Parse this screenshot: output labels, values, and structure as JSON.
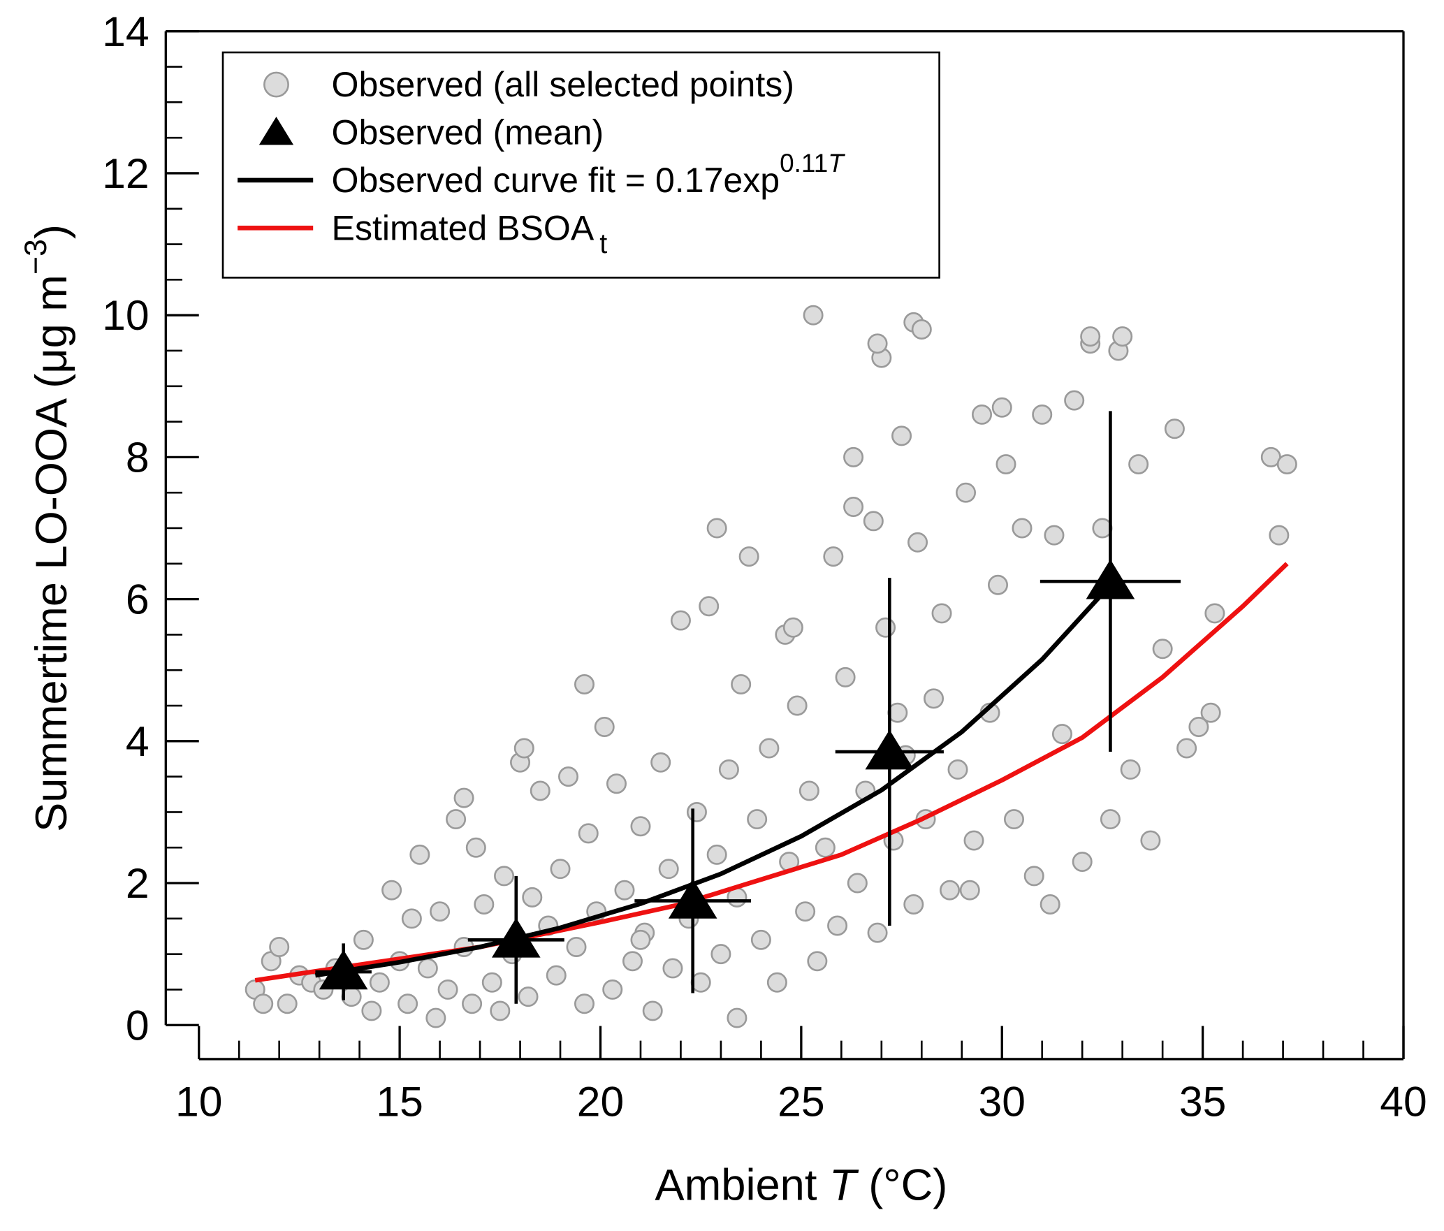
{
  "chart_data": {
    "type": "scatter",
    "xlabel": [
      "Ambient ",
      "T",
      " (°C)"
    ],
    "ylabel": [
      "Summertime LO-OOA (μg m",
      "−3",
      ")"
    ],
    "xlim": [
      10,
      40
    ],
    "xticks": [
      10,
      15,
      20,
      25,
      30,
      35,
      40
    ],
    "xminorticks": [
      11,
      12,
      13,
      14,
      16,
      17,
      18,
      19,
      21,
      22,
      23,
      24,
      26,
      27,
      28,
      29,
      31,
      32,
      33,
      34,
      36,
      37,
      38,
      39
    ],
    "ylim": [
      0,
      14
    ],
    "yticks": [
      0,
      2,
      4,
      6,
      8,
      10,
      12,
      14
    ],
    "yminorticks": [
      0.5,
      1,
      1.5,
      2.5,
      3,
      3.5,
      4.5,
      5,
      5.5,
      6.5,
      7,
      7.5,
      8.5,
      9,
      9.5,
      10.5,
      11,
      11.5,
      12.5,
      13,
      13.5
    ],
    "series": [
      {
        "name": "Observed (all selected points)",
        "mode": "markers",
        "marker": "circle",
        "color": "#dcdcdc",
        "edgecolor": "#9a9a9a",
        "x": [
          11.4,
          11.6,
          11.8,
          12.0,
          12.2,
          12.5,
          12.8,
          13.1,
          13.4,
          13.8,
          14.1,
          14.3,
          14.5,
          14.8,
          15.0,
          15.2,
          15.3,
          15.5,
          15.7,
          15.9,
          16.0,
          16.2,
          16.4,
          16.6,
          16.8,
          16.9,
          17.1,
          17.3,
          17.5,
          17.6,
          17.8,
          18.0,
          18.2,
          18.3,
          18.5,
          18.7,
          18.9,
          19.0,
          19.2,
          19.4,
          19.6,
          19.7,
          19.9,
          20.1,
          20.3,
          20.4,
          20.6,
          20.8,
          21.0,
          21.1,
          21.3,
          21.5,
          21.7,
          21.8,
          22.0,
          22.2,
          22.4,
          22.5,
          22.7,
          22.9,
          23.0,
          23.2,
          23.4,
          23.5,
          23.7,
          23.9,
          24.0,
          24.2,
          24.4,
          24.6,
          24.7,
          24.9,
          25.1,
          25.2,
          25.4,
          25.6,
          25.8,
          25.9,
          26.1,
          26.3,
          26.4,
          26.6,
          26.8,
          26.9,
          27.1,
          27.3,
          27.4,
          27.6,
          27.8,
          27.9,
          28.1,
          28.3,
          28.5,
          28.7,
          28.9,
          29.1,
          29.3,
          29.5,
          29.7,
          29.9,
          30.1,
          30.3,
          30.5,
          30.8,
          31.0,
          31.2,
          31.5,
          31.8,
          32.0,
          32.2,
          32.5,
          32.7,
          32.9,
          33.2,
          33.4,
          33.7,
          34.0,
          34.3,
          34.6,
          34.9,
          35.2,
          35.3,
          36.7,
          36.9,
          37.1,
          25.3,
          27.8,
          27.0,
          26.9,
          28.0,
          30.0,
          31.3,
          32.2,
          33.0,
          19.6,
          22.9,
          23.4,
          21.0,
          16.6,
          18.1,
          24.8,
          26.3,
          27.5,
          29.2
        ],
        "y": [
          0.5,
          0.3,
          0.9,
          1.1,
          0.3,
          0.7,
          0.6,
          0.5,
          0.8,
          0.4,
          1.2,
          0.2,
          0.6,
          1.9,
          0.9,
          0.3,
          1.5,
          2.4,
          0.8,
          0.1,
          1.6,
          0.5,
          2.9,
          1.1,
          0.3,
          2.5,
          1.7,
          0.6,
          0.2,
          2.1,
          1.0,
          3.7,
          0.4,
          1.8,
          3.3,
          1.4,
          0.7,
          2.2,
          3.5,
          1.1,
          0.3,
          2.7,
          1.6,
          4.2,
          0.5,
          3.4,
          1.9,
          0.9,
          2.8,
          1.3,
          0.2,
          3.7,
          2.2,
          0.8,
          5.7,
          1.5,
          3.0,
          0.6,
          5.9,
          2.4,
          1.0,
          3.6,
          1.8,
          4.8,
          6.6,
          2.9,
          1.2,
          3.9,
          0.6,
          5.5,
          2.3,
          4.5,
          1.6,
          3.3,
          0.9,
          2.5,
          6.6,
          1.4,
          4.9,
          8.0,
          2.0,
          3.3,
          7.1,
          1.3,
          5.6,
          2.6,
          4.4,
          3.8,
          1.7,
          6.8,
          2.9,
          4.6,
          5.8,
          1.9,
          3.6,
          7.5,
          2.6,
          8.6,
          4.4,
          6.2,
          7.9,
          2.9,
          7.0,
          2.1,
          8.6,
          1.7,
          4.1,
          8.8,
          2.3,
          9.6,
          7.0,
          2.9,
          9.5,
          3.6,
          7.9,
          2.6,
          5.3,
          8.4,
          3.9,
          4.2,
          4.4,
          5.8,
          8.0,
          6.9,
          7.9,
          10.0,
          9.9,
          9.4,
          9.6,
          9.8,
          8.7,
          6.9,
          9.7,
          9.7,
          4.8,
          7.0,
          0.1,
          1.2,
          3.2,
          3.9,
          5.6,
          7.3,
          8.3,
          1.9
        ]
      },
      {
        "name": "Observed (mean)",
        "mode": "markers",
        "marker": "triangle",
        "color": "#000000",
        "x": [
          13.6,
          17.9,
          22.3,
          27.2,
          32.7
        ],
        "y": [
          0.75,
          1.2,
          1.75,
          3.85,
          6.25
        ],
        "xerr": [
          0.7,
          1.2,
          1.45,
          1.35,
          1.75
        ],
        "yerr": [
          0.4,
          0.9,
          1.3,
          2.45,
          2.4
        ]
      },
      {
        "name": "Observed curve fit = 0.17exp",
        "name_sup": [
          "0.11",
          "T"
        ],
        "mode": "lines",
        "color": "#000000",
        "x": [
          12.9,
          15,
          17,
          19,
          21,
          23,
          25,
          27,
          29,
          31,
          32.7
        ],
        "y": [
          0.7,
          0.886,
          1.1,
          1.37,
          1.71,
          2.13,
          2.66,
          3.31,
          4.13,
          5.15,
          6.2
        ]
      },
      {
        "name": "Estimated BSOA",
        "name_sub": "t",
        "mode": "lines",
        "color": "#ee1111",
        "x": [
          11.4,
          14,
          17,
          20,
          22,
          24,
          26,
          28,
          30,
          32,
          34,
          36,
          37.1
        ],
        "y": [
          0.63,
          0.85,
          1.1,
          1.45,
          1.7,
          2.05,
          2.4,
          2.9,
          3.45,
          4.05,
          4.9,
          5.9,
          6.5
        ]
      }
    ]
  }
}
